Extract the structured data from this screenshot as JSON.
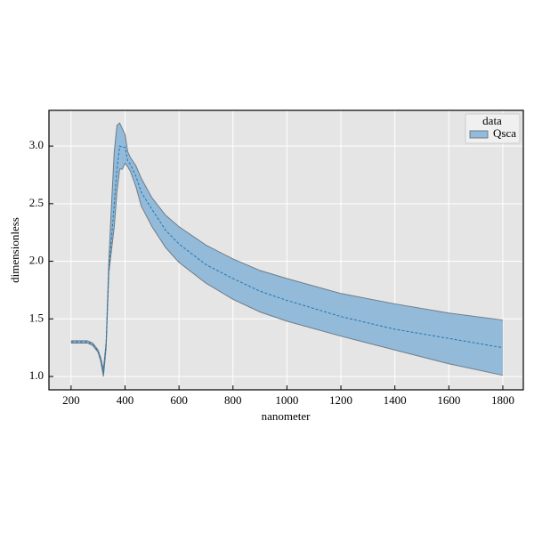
{
  "chart_data": {
    "type": "band",
    "xlabel": "nanometer",
    "ylabel": "dimensionless",
    "x": [
      200,
      220,
      240,
      260,
      280,
      300,
      310,
      320,
      330,
      340,
      350,
      360,
      370,
      380,
      390,
      400,
      410,
      420,
      440,
      460,
      500,
      550,
      600,
      700,
      800,
      900,
      1000,
      1200,
      1400,
      1600,
      1800
    ],
    "series": [
      {
        "name": "Qsca",
        "color": "#1f77b4",
        "fill": "#93bad8",
        "edge": "#6e7c88",
        "values": [
          1.3,
          1.3,
          1.3,
          1.3,
          1.28,
          1.22,
          1.15,
          1.03,
          1.3,
          1.95,
          2.2,
          2.5,
          2.8,
          3.0,
          2.99,
          2.99,
          2.87,
          2.84,
          2.74,
          2.6,
          2.45,
          2.27,
          2.15,
          1.97,
          1.85,
          1.74,
          1.66,
          1.52,
          1.41,
          1.33,
          1.25
        ],
        "upper": [
          1.31,
          1.31,
          1.31,
          1.31,
          1.29,
          1.23,
          1.16,
          1.06,
          1.3,
          2.0,
          2.5,
          2.95,
          3.18,
          3.2,
          3.15,
          3.1,
          2.95,
          2.9,
          2.83,
          2.72,
          2.55,
          2.4,
          2.3,
          2.14,
          2.02,
          1.92,
          1.85,
          1.72,
          1.63,
          1.55,
          1.49
        ],
        "lower": [
          1.29,
          1.29,
          1.29,
          1.29,
          1.27,
          1.21,
          1.13,
          1.0,
          1.25,
          1.9,
          2.1,
          2.3,
          2.6,
          2.8,
          2.8,
          2.85,
          2.82,
          2.78,
          2.65,
          2.48,
          2.3,
          2.12,
          1.99,
          1.81,
          1.67,
          1.56,
          1.48,
          1.35,
          1.23,
          1.11,
          1.01
        ]
      }
    ],
    "legend_title": "data",
    "legend": "upper right",
    "xlim": [
      118,
      1876
    ],
    "ylim": [
      0.884,
      3.31
    ],
    "xticks": [
      200,
      400,
      600,
      800,
      1000,
      1200,
      1400,
      1600,
      1800
    ],
    "yticks": [
      {
        "value": 1,
        "label": "1.0"
      },
      1.5,
      {
        "value": 2,
        "label": "2.0"
      },
      2.5,
      {
        "value": 3,
        "label": "3.0"
      }
    ],
    "grid": true
  }
}
